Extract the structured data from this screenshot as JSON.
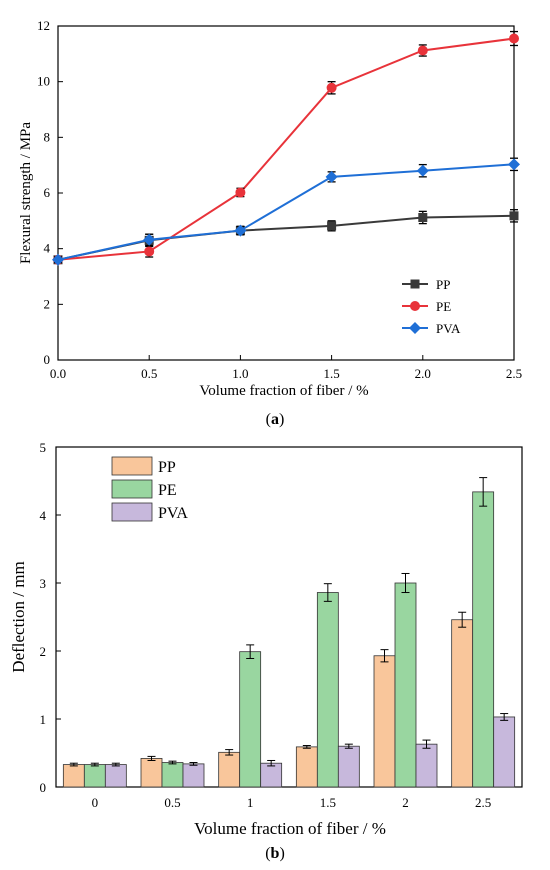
{
  "chart_data": [
    {
      "type": "line",
      "xlabel": "Volume fraction of fiber / %",
      "ylabel": "Flexural strength / MPa",
      "caption_letter": "a",
      "xlim": [
        0.0,
        2.5
      ],
      "ylim": [
        0,
        12
      ],
      "xticks": [
        "0.0",
        "0.5",
        "1.0",
        "1.5",
        "2.0",
        "2.5"
      ],
      "yticks": [
        "0",
        "2",
        "4",
        "6",
        "8",
        "10",
        "12"
      ],
      "legend_position": "bottom-right",
      "x": [
        0.0,
        0.5,
        1.0,
        1.5,
        2.0,
        2.5
      ],
      "series": [
        {
          "name": "PP",
          "color": "#3a3a3a",
          "marker": "square",
          "values": [
            3.6,
            4.3,
            4.65,
            4.82,
            5.12,
            5.18
          ],
          "errors": [
            0.12,
            0.22,
            0.15,
            0.18,
            0.22,
            0.22
          ]
        },
        {
          "name": "PE",
          "color": "#e8333a",
          "marker": "circle",
          "values": [
            3.6,
            3.9,
            6.02,
            9.78,
            11.12,
            11.55
          ],
          "errors": [
            0.1,
            0.2,
            0.15,
            0.22,
            0.2,
            0.25
          ]
        },
        {
          "name": "PVA",
          "color": "#1f6fd6",
          "marker": "diamond",
          "values": [
            3.6,
            4.32,
            4.65,
            6.58,
            6.8,
            7.03
          ],
          "errors": [
            0.1,
            0.2,
            0.15,
            0.18,
            0.22,
            0.22
          ]
        }
      ]
    },
    {
      "type": "bar",
      "xlabel": "Volume fraction of fiber / %",
      "ylabel": "Deflection / mm",
      "caption_letter": "b",
      "ylim": [
        0,
        5
      ],
      "yticks": [
        "0",
        "1",
        "2",
        "3",
        "4",
        "5"
      ],
      "categories": [
        "0",
        "0.5",
        "1",
        "1.5",
        "2",
        "2.5"
      ],
      "legend_position": "top-left",
      "series": [
        {
          "name": "PP",
          "color": "#f9c69b",
          "values": [
            0.33,
            0.42,
            0.51,
            0.59,
            1.93,
            2.46
          ],
          "errors": [
            0.02,
            0.03,
            0.04,
            0.02,
            0.09,
            0.11
          ]
        },
        {
          "name": "PE",
          "color": "#99d6a0",
          "values": [
            0.33,
            0.36,
            1.99,
            2.86,
            3.0,
            4.34
          ],
          "errors": [
            0.02,
            0.02,
            0.1,
            0.13,
            0.14,
            0.21
          ]
        },
        {
          "name": "PVA",
          "color": "#c7b8dc",
          "values": [
            0.33,
            0.34,
            0.35,
            0.6,
            0.63,
            1.03
          ],
          "errors": [
            0.02,
            0.02,
            0.04,
            0.03,
            0.06,
            0.05
          ]
        }
      ]
    }
  ]
}
